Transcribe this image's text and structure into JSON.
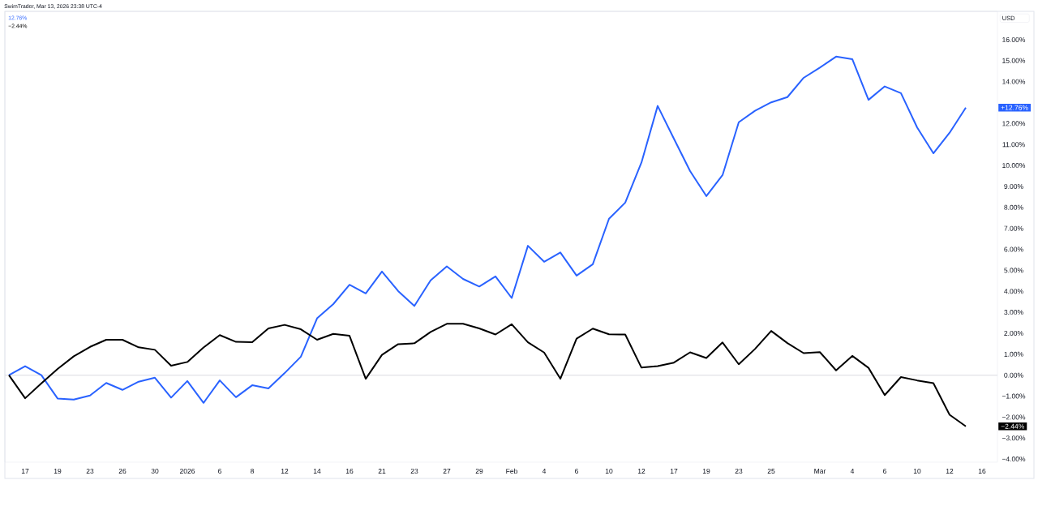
{
  "chart_data": {
    "type": "line",
    "title": "SwimTrader, Mar 13, 2026 23:38 UTC-4",
    "ylabel": "USD",
    "annotations": [
      "12.76%",
      "−2.44%",
      "+12.76%",
      "−2.44%"
    ],
    "categories": [
      null,
      "17",
      null,
      "19",
      null,
      "23",
      null,
      "26",
      null,
      "30",
      null,
      "2026",
      null,
      "6",
      null,
      "8",
      null,
      "12",
      null,
      "14",
      null,
      "16",
      null,
      "21",
      null,
      "23",
      null,
      "27",
      null,
      "29",
      null,
      "Feb",
      null,
      "4",
      null,
      "6",
      null,
      "10",
      null,
      "12",
      null,
      "17",
      null,
      "19",
      null,
      "23",
      null,
      "25",
      null,
      null,
      "Mar",
      null,
      "4",
      null,
      "6",
      null,
      "10",
      null,
      "12",
      null,
      "16"
    ],
    "series": [
      {
        "color": "#2962ff",
        "values": [
          0,
          0.43,
          0,
          -1.11,
          -1.16,
          -0.97,
          -0.37,
          -0.7,
          -0.31,
          -0.12,
          -1.07,
          -0.28,
          -1.32,
          -0.25,
          -1.05,
          -0.48,
          -0.63,
          0.1,
          0.88,
          2.71,
          3.39,
          4.31,
          3.9,
          4.94,
          4.01,
          3.3,
          4.52,
          5.19,
          4.59,
          4.23,
          4.71,
          3.68,
          6.17,
          5.41,
          5.85,
          4.75,
          5.29,
          7.46,
          8.23,
          10.14,
          12.84,
          11.28,
          9.73,
          8.54,
          9.54,
          12.06,
          12.61,
          13.01,
          13.26,
          14.18,
          14.67,
          15.19,
          15.07,
          13.13,
          13.77,
          13.45,
          11.81,
          10.58,
          11.56,
          12.76,
          null
        ]
      },
      {
        "color": "#000000",
        "values": [
          0,
          -1.1,
          -0.39,
          0.3,
          0.9,
          1.35,
          1.69,
          1.69,
          1.33,
          1.21,
          0.45,
          0.63,
          1.32,
          1.91,
          1.59,
          1.57,
          2.23,
          2.4,
          2.19,
          1.69,
          1.97,
          1.88,
          -0.17,
          0.97,
          1.48,
          1.52,
          2.06,
          2.45,
          2.45,
          2.23,
          1.94,
          2.43,
          1.57,
          1.08,
          -0.17,
          1.74,
          2.22,
          1.95,
          1.94,
          0.36,
          0.43,
          0.6,
          1.09,
          0.82,
          1.56,
          0.52,
          1.25,
          2.11,
          1.53,
          1.05,
          1.1,
          0.23,
          0.92,
          0.35,
          -0.95,
          -0.09,
          -0.25,
          -0.38,
          -1.89,
          -2.44,
          null
        ]
      }
    ],
    "ylim": [
      -4.15,
      17.35
    ],
    "yticks": [
      {
        "value": -4,
        "label": "−4.00%"
      },
      {
        "value": -3,
        "label": "−3.00%"
      },
      {
        "value": -2,
        "label": "−2.00%"
      },
      {
        "value": -1,
        "label": "−1.00%"
      },
      {
        "value": 0,
        "label": "0.00%"
      },
      {
        "value": 1,
        "label": "1.00%"
      },
      {
        "value": 2,
        "label": "2.00%"
      },
      {
        "value": 3,
        "label": "3.00%"
      },
      {
        "value": 4,
        "label": "4.00%"
      },
      {
        "value": 5,
        "label": "5.00%"
      },
      {
        "value": 6,
        "label": "6.00%"
      },
      {
        "value": 7,
        "label": "7.00%"
      },
      {
        "value": 8,
        "label": "8.00%"
      },
      {
        "value": 9,
        "label": "9.00%"
      },
      {
        "value": 10,
        "label": "10.00%"
      },
      {
        "value": 11,
        "label": "11.00%"
      },
      {
        "value": 12,
        "label": "12.00%"
      },
      {
        "value": 14,
        "label": "14.00%"
      },
      {
        "value": 15,
        "label": "15.00%"
      },
      {
        "value": 16,
        "label": "16.00%"
      }
    ],
    "ref_lines": [
      {
        "axis": "y",
        "value": 0,
        "color": "#d9dbe0"
      }
    ]
  }
}
